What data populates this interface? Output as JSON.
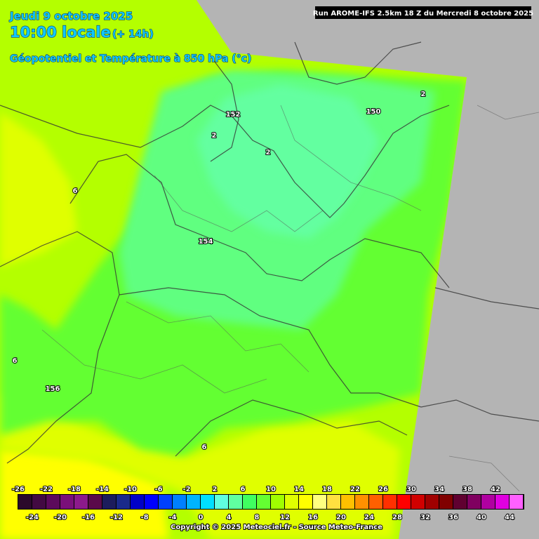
{
  "header": {
    "date": "Jeudi 9 octobre 2025",
    "time": "10:00 locale",
    "lead": "(+ 14h)",
    "field": "Géopotentiel et Température à 850 hPa (°c)",
    "run": "Run AROME-IFS 2.5km 18 Z du Mercredi 8 octobre 2025"
  },
  "contour_labels": [
    "152",
    "150",
    "2",
    "2",
    "2",
    "6",
    "154",
    "6",
    "156",
    "6"
  ],
  "legend": {
    "upper_labels": [
      -26,
      -22,
      -18,
      -14,
      -10,
      -6,
      -2,
      2,
      6,
      10,
      14,
      18,
      22,
      26,
      30,
      34,
      38,
      42
    ],
    "lower_labels": [
      -24,
      -20,
      -16,
      -12,
      -8,
      -4,
      0,
      4,
      8,
      12,
      16,
      20,
      24,
      28,
      32,
      36,
      40,
      44
    ],
    "colors": [
      "#2b0a2b",
      "#420a42",
      "#5c0a5c",
      "#7a107a",
      "#8c1a8c",
      "#5a0a4a",
      "#1c1c5c",
      "#1a2a8a",
      "#0000c8",
      "#0000ff",
      "#0040ff",
      "#0080ff",
      "#00b4ff",
      "#00e0ff",
      "#60ffe0",
      "#60ffa0",
      "#40ff60",
      "#64ff32",
      "#a0ff00",
      "#e0ff00",
      "#ffff00",
      "#ffff80",
      "#ffe040",
      "#ffc000",
      "#ff9000",
      "#ff6000",
      "#ff3000",
      "#ff0000",
      "#d00000",
      "#a00000",
      "#800000",
      "#600030",
      "#800060",
      "#b000a0",
      "#e000e0",
      "#ff60ff"
    ]
  },
  "copyright": "Copyright © 2025 Meteociel.fr - Source Meteo-France"
}
